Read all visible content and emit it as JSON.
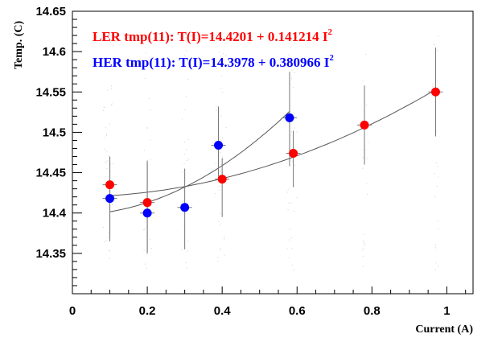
{
  "chart_data": {
    "type": "scatter",
    "title": "",
    "xlabel": "Current (A)",
    "ylabel": "Temp. (C)",
    "xlim": [
      0,
      1.07
    ],
    "ylim": [
      14.3,
      14.65
    ],
    "x_ticks": [
      0,
      0.2,
      0.4,
      0.6,
      0.8,
      1
    ],
    "x_tick_labels": [
      "0",
      "0.2",
      "0.4",
      "0.6",
      "0.8",
      "1"
    ],
    "y_ticks": [
      14.35,
      14.4,
      14.45,
      14.5,
      14.55,
      14.6,
      14.65
    ],
    "y_tick_labels": [
      "14.35",
      "14.4",
      "14.45",
      "14.5",
      "14.55",
      "14.6",
      "14.65"
    ],
    "grid": false,
    "legend_position": "top-left",
    "series": [
      {
        "name": "LER tmp(11)",
        "legend_prefix": "LER tmp(11): T(I)=14.4201 + 0.141214 I",
        "legend_superscript": "2",
        "color": "#ff0000",
        "x": [
          0.1,
          0.2,
          0.4,
          0.59,
          0.78,
          0.97
        ],
        "y": [
          14.435,
          14.413,
          14.442,
          14.474,
          14.509,
          14.55
        ],
        "err_low": [
          14.365,
          14.35,
          14.395,
          14.432,
          14.46,
          14.495
        ],
        "err_high": [
          14.47,
          14.465,
          14.468,
          14.502,
          14.558,
          14.605
        ],
        "fit": {
          "a": 14.4201,
          "b": 0.141214,
          "x_range": [
            0.1,
            0.97
          ]
        }
      },
      {
        "name": "HER tmp(11)",
        "legend_prefix": "HER tmp(11): T(I)=14.3978 + 0.380966 I",
        "legend_superscript": "2",
        "color": "#0000ff",
        "x": [
          0.1,
          0.2,
          0.3,
          0.39,
          0.58
        ],
        "y": [
          14.418,
          14.4,
          14.407,
          14.484,
          14.518
        ],
        "err_low": [
          14.37,
          14.352,
          14.355,
          14.445,
          14.458
        ],
        "err_high": [
          14.47,
          14.462,
          14.455,
          14.532,
          14.575
        ],
        "fit": {
          "a": 14.3978,
          "b": 0.380966,
          "x_range": [
            0.1,
            0.58
          ]
        }
      }
    ]
  }
}
